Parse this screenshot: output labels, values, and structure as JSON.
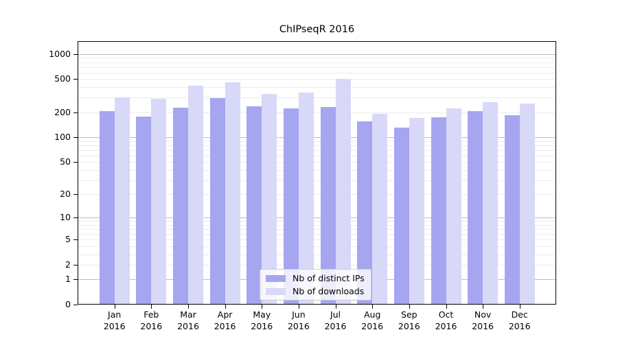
{
  "chart_data": {
    "type": "bar",
    "title": "ChIPseqR 2016",
    "categories": [
      "Jan 2016",
      "Feb 2016",
      "Mar 2016",
      "Apr 2016",
      "May 2016",
      "Jun 2016",
      "Jul 2016",
      "Aug 2016",
      "Sep 2016",
      "Oct 2016",
      "Nov 2016",
      "Dec 2016"
    ],
    "months": [
      "Jan",
      "Feb",
      "Mar",
      "Apr",
      "May",
      "Jun",
      "Jul",
      "Aug",
      "Sep",
      "Oct",
      "Nov",
      "Dec"
    ],
    "year": "2016",
    "series": [
      {
        "name": "Nb of distinct IPs",
        "color": "#a5a5f0",
        "values": [
          205,
          176,
          228,
          298,
          235,
          222,
          233,
          155,
          131,
          175,
          205,
          186
        ]
      },
      {
        "name": "Nb of downloads",
        "color": "#d8d8f8",
        "values": [
          305,
          290,
          420,
          460,
          335,
          345,
          500,
          190,
          170,
          225,
          265,
          255
        ]
      }
    ],
    "y_scale": "log10(1+x)",
    "y_ticks": [
      0,
      1,
      2,
      5,
      10,
      20,
      50,
      100,
      200,
      500,
      1000
    ],
    "ylim": [
      0,
      1430
    ],
    "grid": "horizontal",
    "legend_position": "lower-center-inside",
    "axis_color": "#000000",
    "major_grid_color": "#bdbdbd",
    "minor_grid_color": "#ebebeb"
  }
}
